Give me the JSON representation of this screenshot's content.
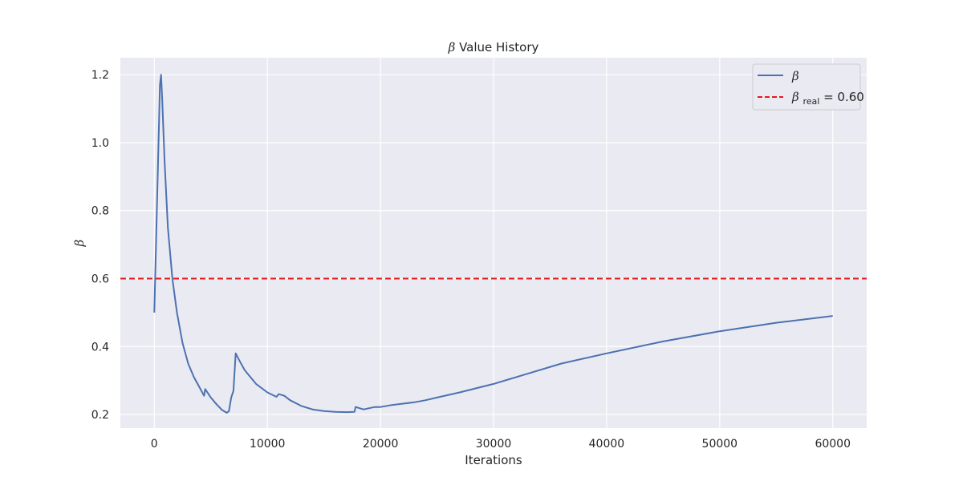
{
  "chart_data": {
    "type": "line",
    "title_symbol": "β",
    "title_text": "Value History",
    "xlabel": "Iterations",
    "ylabel": "β",
    "xlim": [
      -3000,
      63000
    ],
    "ylim": [
      0.16,
      1.25
    ],
    "xticks": [
      0,
      10000,
      20000,
      30000,
      40000,
      50000,
      60000
    ],
    "yticks": [
      0.2,
      0.4,
      0.6,
      0.8,
      1.0,
      1.2
    ],
    "grid": true,
    "legend_position": "top-right",
    "background": "#eaeaf2",
    "series": [
      {
        "name": "β",
        "color": "#4c72b0",
        "style": "solid",
        "x": [
          0,
          300,
          500,
          600,
          700,
          900,
          1200,
          1600,
          2000,
          2500,
          3000,
          3500,
          4000,
          4400,
          4500,
          5000,
          5500,
          6000,
          6400,
          6600,
          6800,
          7000,
          7200,
          7500,
          8000,
          9000,
          10000,
          10800,
          11000,
          11500,
          12000,
          13000,
          14000,
          15000,
          16000,
          17000,
          17700,
          17800,
          18500,
          19500,
          20000,
          21000,
          22000,
          23000,
          24000,
          25000,
          27000,
          30000,
          33000,
          36000,
          40000,
          45000,
          50000,
          55000,
          60000
        ],
        "y": [
          0.5,
          0.9,
          1.17,
          1.2,
          1.13,
          0.95,
          0.75,
          0.6,
          0.5,
          0.41,
          0.35,
          0.31,
          0.28,
          0.255,
          0.275,
          0.25,
          0.23,
          0.213,
          0.205,
          0.21,
          0.25,
          0.27,
          0.38,
          0.36,
          0.33,
          0.29,
          0.265,
          0.252,
          0.26,
          0.255,
          0.242,
          0.225,
          0.215,
          0.21,
          0.208,
          0.207,
          0.208,
          0.222,
          0.215,
          0.222,
          0.222,
          0.228,
          0.232,
          0.236,
          0.242,
          0.25,
          0.265,
          0.29,
          0.32,
          0.35,
          0.38,
          0.415,
          0.445,
          0.47,
          0.49
        ]
      }
    ],
    "reference_lines": [
      {
        "name_symbol": "β",
        "name_subscript": "real",
        "name_suffix": " = 0.60",
        "value": 0.6,
        "color": "#e31a1c",
        "style": "dashed"
      }
    ]
  }
}
